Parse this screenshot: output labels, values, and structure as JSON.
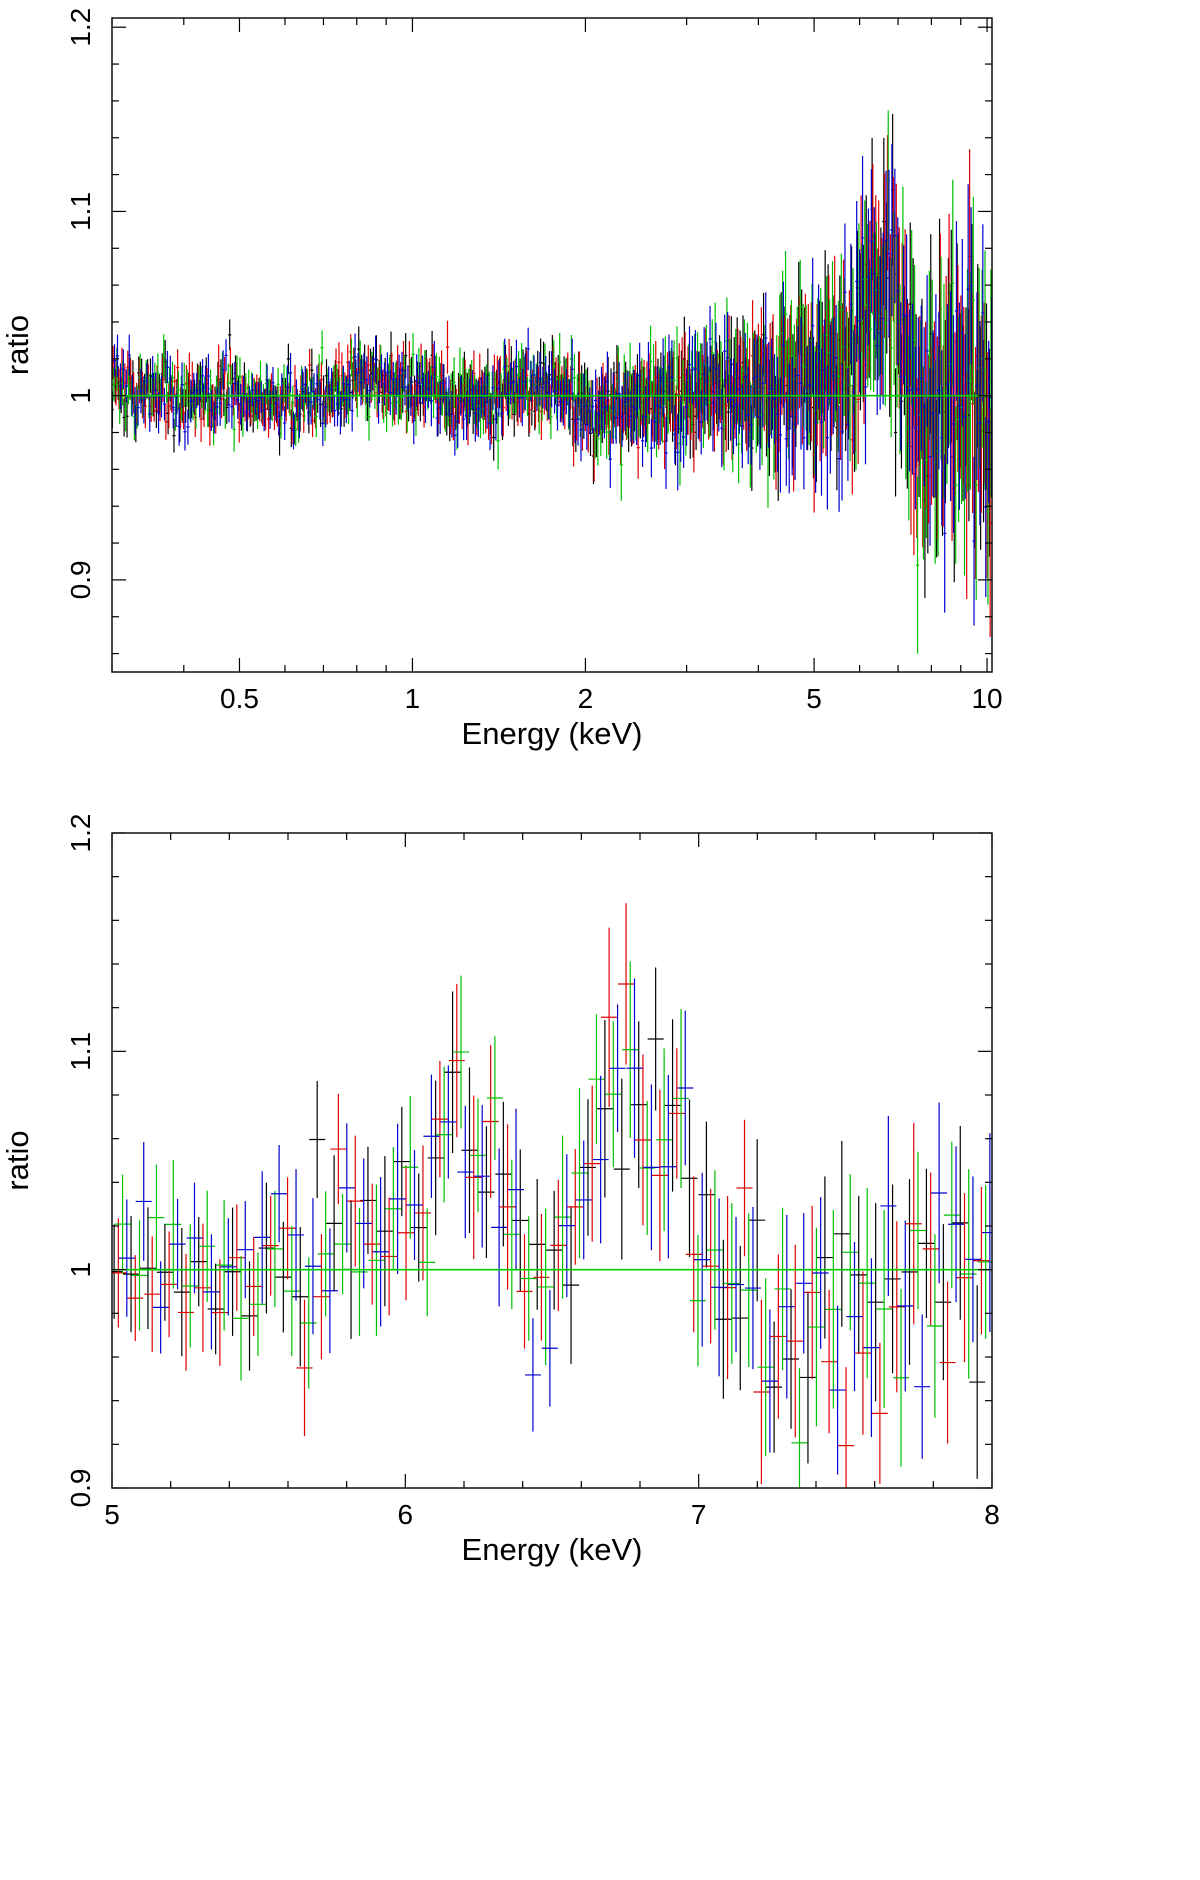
{
  "chart_data": [
    {
      "type": "scatter",
      "xlabel": "Energy (keV)",
      "ylabel": "ratio",
      "xscale": "log",
      "xlim": [
        0.3,
        10.2
      ],
      "ylim": [
        0.85,
        1.205
      ],
      "xticks": [
        {
          "v": 0.5,
          "label": "0.5"
        },
        {
          "v": 1,
          "label": "1"
        },
        {
          "v": 2,
          "label": "2"
        },
        {
          "v": 5,
          "label": "5"
        },
        {
          "v": 10,
          "label": "10"
        }
      ],
      "xminor": [
        0.3,
        0.4,
        0.6,
        0.7,
        0.8,
        0.9,
        3,
        4,
        6,
        7,
        8,
        9
      ],
      "yticks": [
        {
          "v": 0.9,
          "label": "0.9"
        },
        {
          "v": 1.0,
          "label": "1"
        },
        {
          "v": 1.1,
          "label": "1.1"
        },
        {
          "v": 1.2,
          "label": "1.2"
        }
      ],
      "yminor": [
        0.86,
        0.88,
        0.92,
        0.94,
        0.96,
        0.98,
        1.02,
        1.04,
        1.06,
        1.08,
        1.12,
        1.14,
        1.16,
        1.18
      ],
      "reference_line": {
        "y": 1.0,
        "color": "#00d000"
      },
      "series_colors": [
        "#000000",
        "#e00000",
        "#00c000",
        "#0000d0"
      ],
      "envelope": [
        {
          "x": 0.3,
          "mean": 1.001,
          "scatter": 0.009,
          "err": 0.011
        },
        {
          "x": 0.5,
          "mean": 1.001,
          "scatter": 0.009,
          "err": 0.01
        },
        {
          "x": 0.6,
          "mean": 0.995,
          "scatter": 0.008,
          "err": 0.01
        },
        {
          "x": 0.8,
          "mean": 1.008,
          "scatter": 0.008,
          "err": 0.011
        },
        {
          "x": 1.0,
          "mean": 1.004,
          "scatter": 0.009,
          "err": 0.012
        },
        {
          "x": 1.3,
          "mean": 0.998,
          "scatter": 0.009,
          "err": 0.013
        },
        {
          "x": 1.8,
          "mean": 1.008,
          "scatter": 0.008,
          "err": 0.013
        },
        {
          "x": 2.0,
          "mean": 0.99,
          "scatter": 0.01,
          "err": 0.015
        },
        {
          "x": 3.0,
          "mean": 1.001,
          "scatter": 0.013,
          "err": 0.02
        },
        {
          "x": 4.0,
          "mean": 1.006,
          "scatter": 0.016,
          "err": 0.026
        },
        {
          "x": 5.0,
          "mean": 1.012,
          "scatter": 0.02,
          "err": 0.033
        },
        {
          "x": 5.8,
          "mean": 1.025,
          "scatter": 0.024,
          "err": 0.036
        },
        {
          "x": 6.3,
          "mean": 1.055,
          "scatter": 0.028,
          "err": 0.038
        },
        {
          "x": 6.7,
          "mean": 1.08,
          "scatter": 0.03,
          "err": 0.04
        },
        {
          "x": 7.0,
          "mean": 1.04,
          "scatter": 0.03,
          "err": 0.042
        },
        {
          "x": 7.6,
          "mean": 0.975,
          "scatter": 0.03,
          "err": 0.045
        },
        {
          "x": 8.5,
          "mean": 1.005,
          "scatter": 0.032,
          "err": 0.05
        },
        {
          "x": 10.2,
          "mean": 1.005,
          "scatter": 0.034,
          "err": 0.055
        }
      ]
    },
    {
      "type": "scatter",
      "xlabel": "Energy (keV)",
      "ylabel": "ratio",
      "xscale": "linear",
      "xlim": [
        5,
        8
      ],
      "ylim": [
        0.9,
        1.2
      ],
      "xticks": [
        {
          "v": 5,
          "label": "5"
        },
        {
          "v": 6,
          "label": "6"
        },
        {
          "v": 7,
          "label": "7"
        },
        {
          "v": 8,
          "label": "8"
        }
      ],
      "xminor": [
        5.2,
        5.4,
        5.6,
        5.8,
        6.2,
        6.4,
        6.6,
        6.8,
        7.2,
        7.4,
        7.6,
        7.8
      ],
      "yticks": [
        {
          "v": 0.9,
          "label": "0.9"
        },
        {
          "v": 1.0,
          "label": "1"
        },
        {
          "v": 1.1,
          "label": "1.1"
        },
        {
          "v": 1.2,
          "label": "1.2"
        }
      ],
      "yminor": [
        0.92,
        0.94,
        0.96,
        0.98,
        1.02,
        1.04,
        1.06,
        1.08,
        1.12,
        1.14,
        1.16,
        1.18
      ],
      "reference_line": {
        "y": 1.0,
        "color": "#00d000"
      },
      "series_colors": [
        "#000000",
        "#e00000",
        "#00c000",
        "#0000d0"
      ],
      "envelope": [
        {
          "x": 5.0,
          "mean": 1.002,
          "scatter": 0.015,
          "err": 0.024
        },
        {
          "x": 5.5,
          "mean": 1.004,
          "scatter": 0.017,
          "err": 0.026
        },
        {
          "x": 5.8,
          "mean": 1.003,
          "scatter": 0.02,
          "err": 0.028
        },
        {
          "x": 6.0,
          "mean": 1.03,
          "scatter": 0.02,
          "err": 0.03
        },
        {
          "x": 6.2,
          "mean": 1.065,
          "scatter": 0.02,
          "err": 0.032
        },
        {
          "x": 6.3,
          "mean": 1.045,
          "scatter": 0.02,
          "err": 0.032
        },
        {
          "x": 6.45,
          "mean": 0.99,
          "scatter": 0.02,
          "err": 0.032
        },
        {
          "x": 6.55,
          "mean": 1.01,
          "scatter": 0.02,
          "err": 0.032
        },
        {
          "x": 6.65,
          "mean": 1.06,
          "scatter": 0.02,
          "err": 0.034
        },
        {
          "x": 6.75,
          "mean": 1.09,
          "scatter": 0.022,
          "err": 0.035
        },
        {
          "x": 6.9,
          "mean": 1.08,
          "scatter": 0.022,
          "err": 0.036
        },
        {
          "x": 7.0,
          "mean": 1.01,
          "scatter": 0.022,
          "err": 0.036
        },
        {
          "x": 7.2,
          "mean": 0.975,
          "scatter": 0.023,
          "err": 0.037
        },
        {
          "x": 7.6,
          "mean": 0.985,
          "scatter": 0.025,
          "err": 0.04
        },
        {
          "x": 8.0,
          "mean": 1.005,
          "scatter": 0.026,
          "err": 0.042
        }
      ]
    }
  ]
}
